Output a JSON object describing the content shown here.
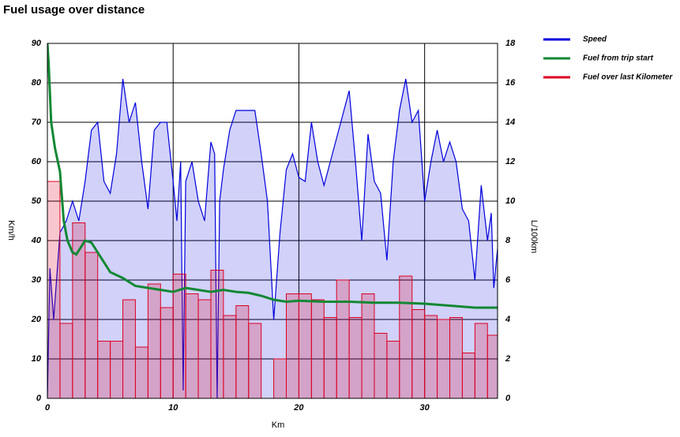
{
  "chart_data": {
    "type": "combo",
    "title": "Fuel usage over distance",
    "xlabel": "Km",
    "ylabel": "Km/h",
    "y2label": "L/100km",
    "xlim": [
      0,
      35.8
    ],
    "xticks": [
      0,
      10,
      20,
      30
    ],
    "ylim": [
      0,
      90
    ],
    "yticks": [
      0,
      10,
      20,
      30,
      40,
      50,
      60,
      70,
      80,
      90
    ],
    "y2lim": [
      0,
      18
    ],
    "y2ticks": [
      0,
      2,
      4,
      6,
      8,
      10,
      12,
      14,
      16,
      18
    ],
    "grid": true,
    "legend": "right",
    "series": [
      {
        "name": "Speed",
        "color": "#0000dd",
        "kind": "area",
        "axis": "y",
        "x": [
          0,
          0.2,
          0.5,
          1,
          1.5,
          2,
          2.5,
          3,
          3.5,
          4,
          4.5,
          5,
          5.5,
          6,
          6.5,
          7,
          7.5,
          8,
          8.5,
          9,
          9.5,
          10,
          10.3,
          10.6,
          10.8,
          11,
          11.5,
          12,
          12.5,
          13,
          13.3,
          13.5,
          13.7,
          14,
          14.5,
          15,
          15.5,
          16,
          16.5,
          17,
          17.5,
          18,
          18.5,
          19,
          19.5,
          20,
          20.5,
          21,
          21.5,
          22,
          22.5,
          23,
          23.5,
          24,
          24.5,
          25,
          25.5,
          26,
          26.5,
          27,
          27.5,
          28,
          28.5,
          29,
          29.5,
          30,
          30.5,
          31,
          31.5,
          32,
          32.5,
          33,
          33.5,
          34,
          34.5,
          35,
          35.3,
          35.5,
          35.8
        ],
        "values": [
          0,
          33,
          20,
          42,
          45,
          50,
          45,
          55,
          68,
          70,
          55,
          52,
          62,
          81,
          70,
          75,
          60,
          48,
          68,
          70,
          70,
          55,
          45,
          60,
          2,
          55,
          60,
          50,
          45,
          65,
          62,
          0,
          50,
          58,
          68,
          73,
          73,
          73,
          73,
          62,
          50,
          20,
          42,
          58,
          62,
          56,
          55,
          70,
          60,
          54,
          60,
          66,
          72,
          78,
          60,
          40,
          67,
          55,
          52,
          35,
          60,
          73,
          81,
          70,
          73,
          50,
          60,
          68,
          60,
          65,
          60,
          48,
          45,
          30,
          54,
          40,
          47,
          28,
          38
        ]
      },
      {
        "name": "Fuel from trip start",
        "color": "#118833",
        "kind": "line",
        "axis": "y2",
        "x": [
          0,
          0.1,
          0.3,
          0.6,
          1,
          1.3,
          1.6,
          2,
          2.3,
          3,
          3.5,
          4,
          5,
          6,
          7,
          8,
          9,
          10,
          11,
          12,
          13,
          14,
          15,
          16,
          17,
          18,
          19,
          20,
          22,
          24,
          26,
          28,
          30,
          32,
          34,
          35.8
        ],
        "values": [
          18,
          17,
          14,
          12.7,
          11.5,
          9,
          8,
          7.4,
          7.3,
          8,
          7.9,
          7.4,
          6.4,
          6.1,
          5.7,
          5.6,
          5.5,
          5.4,
          5.6,
          5.5,
          5.4,
          5.5,
          5.4,
          5.35,
          5.2,
          5,
          4.9,
          4.95,
          4.9,
          4.9,
          4.85,
          4.85,
          4.8,
          4.7,
          4.6,
          4.6
        ]
      },
      {
        "name": "Fuel over last Kilometer",
        "color": "#dd0022",
        "kind": "bar",
        "axis": "y2",
        "bins": [
          0,
          1,
          2,
          3,
          4,
          5,
          6,
          7,
          8,
          9,
          10,
          11,
          12,
          13,
          14,
          15,
          16,
          17,
          18,
          19,
          20,
          21,
          22,
          23,
          24,
          25,
          26,
          27,
          28,
          29,
          30,
          31,
          32,
          33,
          34,
          35,
          36
        ],
        "values": [
          11,
          3.8,
          8.9,
          7.4,
          2.9,
          2.9,
          5,
          2.6,
          5.8,
          4.6,
          6.3,
          5.3,
          5,
          6.5,
          4.2,
          4.7,
          3.8,
          0,
          2,
          5.3,
          5.3,
          5,
          4.1,
          6,
          4.1,
          5.3,
          3.3,
          2.9,
          6.2,
          4.5,
          4.2,
          4,
          4.1,
          2.3,
          3.8,
          3.2
        ]
      }
    ]
  }
}
